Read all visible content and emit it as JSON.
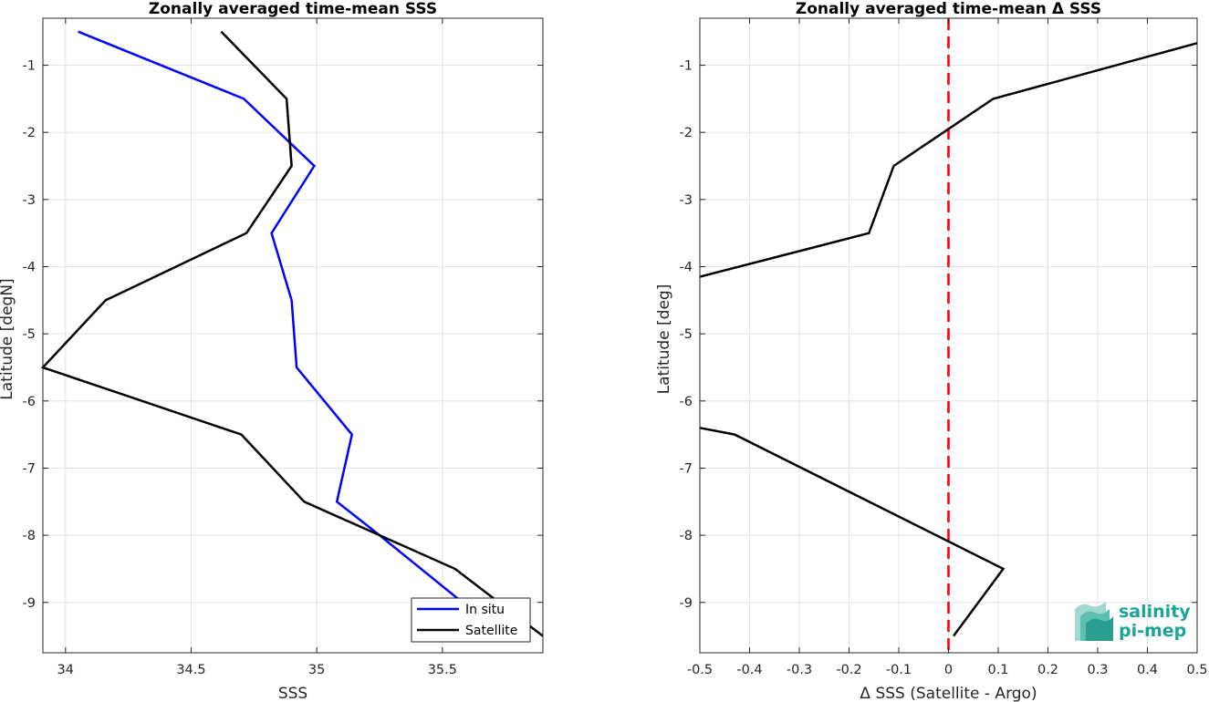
{
  "chart_data": [
    {
      "type": "line",
      "title": "Zonally averaged time-mean SSS",
      "xlabel": "SSS",
      "ylabel": "Latitude [degN]",
      "xlim": [
        33.91,
        35.9
      ],
      "ylim": [
        -9.75,
        -0.3
      ],
      "xticks": [
        34,
        34.5,
        35,
        35.5
      ],
      "yticks": [
        -1,
        -2,
        -3,
        -4,
        -5,
        -6,
        -7,
        -8,
        -9
      ],
      "grid": true,
      "legend": "bottom-right",
      "series": [
        {
          "name": "In situ",
          "color": "#0000ff",
          "x": [
            34.05,
            34.71,
            34.99,
            34.82,
            34.9,
            34.92,
            35.14,
            35.08,
            35.25,
            35.58
          ],
          "y": [
            -0.5,
            -1.5,
            -2.5,
            -3.5,
            -4.5,
            -5.5,
            -6.5,
            -7.5,
            -8.0,
            -9.0
          ]
        },
        {
          "name": "Satellite",
          "color": "#000000",
          "x": [
            34.62,
            34.88,
            34.9,
            34.72,
            34.16,
            33.91,
            34.7,
            34.95,
            35.55,
            35.9
          ],
          "y": [
            -0.5,
            -1.5,
            -2.5,
            -3.5,
            -4.5,
            -5.5,
            -6.5,
            -7.5,
            -8.5,
            -9.5
          ]
        }
      ]
    },
    {
      "type": "line",
      "title": "Zonally averaged time-mean Δ SSS",
      "xlabel": "Δ SSS (Satellite - Argo)",
      "ylabel": "Latitude [deg]",
      "xlim": [
        -0.5,
        0.5
      ],
      "ylim": [
        -9.75,
        -0.3
      ],
      "xticks": [
        -0.5,
        -0.4,
        -0.3,
        -0.2,
        -0.1,
        0,
        0.1,
        0.2,
        0.3,
        0.4,
        0.5
      ],
      "yticks": [
        -1,
        -2,
        -3,
        -4,
        -5,
        -6,
        -7,
        -8,
        -9
      ],
      "grid": true,
      "zero_line_color": "#ff0000",
      "series": [
        {
          "color": "#000000",
          "segments": [
            {
              "x": [
                0.5,
                0.09,
                -0.11,
                -0.16,
                -0.5
              ],
              "y": [
                -0.67,
                -1.5,
                -2.5,
                -3.5,
                -4.15
              ]
            },
            {
              "x": [
                -0.5,
                -0.43,
                0.11,
                0.01
              ],
              "y": [
                -6.4,
                -6.5,
                -8.5,
                -9.5
              ]
            }
          ]
        }
      ]
    }
  ],
  "logo": {
    "line1": "salinity",
    "line2": "pi-mep",
    "color": "#1aa596"
  }
}
